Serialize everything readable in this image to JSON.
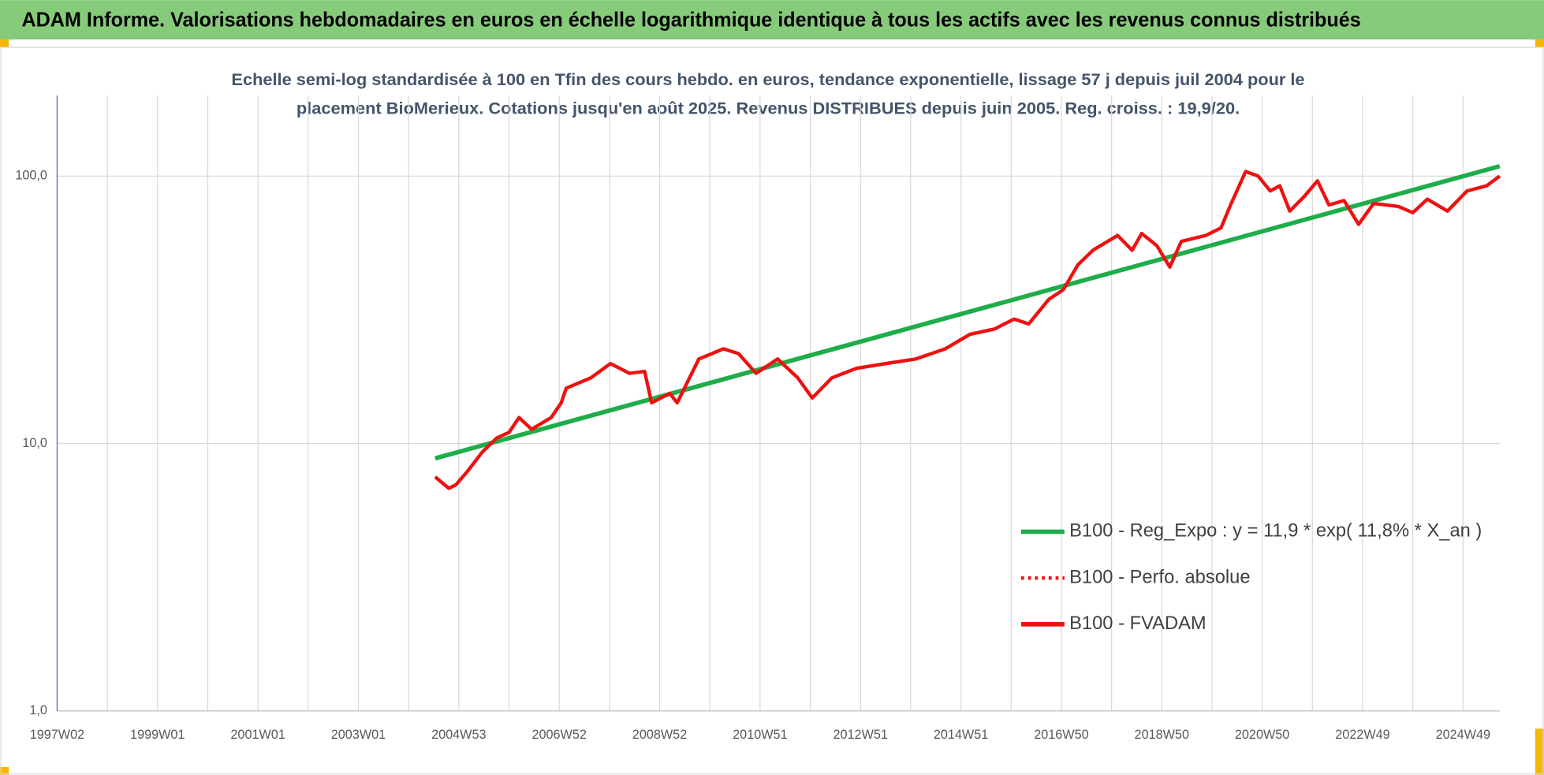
{
  "chart_data": {
    "type": "line",
    "title": "ADAM Informe. Valorisations hebdomadaires en euros en échelle logarithmique identique à tous les actifs avec les revenus connus distribués",
    "subtitle": [
      "Echelle semi-log standardisée à 100 en Tfin des cours hebdo. en euros, tendance exponentielle, lissage 57 j depuis juil 2004 pour le",
      "placement BioMerieux. Cotations jusqu'en août 2025. Revenus DISTRIBUES depuis juin 2005. Reg. croiss. : 19,9/20."
    ],
    "log_y": true,
    "xlim": [
      1997.0,
      2025.73
    ],
    "ylim": [
      1,
      200
    ],
    "yticks": [
      {
        "value": 1,
        "label": "1,0"
      },
      {
        "value": 10,
        "label": "10,0"
      },
      {
        "value": 100,
        "label": "100,0"
      }
    ],
    "xticks": [
      {
        "value": 1997.0,
        "label": "1997W02"
      },
      {
        "value": 1999.0,
        "label": "1999W01"
      },
      {
        "value": 2001.0,
        "label": "2001W01"
      },
      {
        "value": 2003.0,
        "label": "2003W01"
      },
      {
        "value": 2005.0,
        "label": "2004W53"
      },
      {
        "value": 2007.0,
        "label": "2006W52"
      },
      {
        "value": 2009.0,
        "label": "2008W52"
      },
      {
        "value": 2011.0,
        "label": "2010W51"
      },
      {
        "value": 2013.0,
        "label": "2012W51"
      },
      {
        "value": 2015.0,
        "label": "2014W51"
      },
      {
        "value": 2017.0,
        "label": "2016W50"
      },
      {
        "value": 2019.0,
        "label": "2018W50"
      },
      {
        "value": 2021.0,
        "label": "2020W50"
      },
      {
        "value": 2023.0,
        "label": "2022W49"
      },
      {
        "value": 2025.0,
        "label": "2024W49"
      }
    ],
    "xgrid": [
      1998,
      2000,
      2002,
      2004,
      2006,
      2008,
      2010,
      2012,
      2014,
      2016,
      2018,
      2020,
      2022,
      2024
    ],
    "grid": true,
    "legend": "right",
    "series": [
      {
        "name": "B100 - Reg_Expo : y = 11,9 * exp( 11,8% *  X_an )",
        "color": "#1fad4b",
        "style": "solid",
        "x": [
          2004.53,
          2025.73
        ],
        "values": [
          8.8,
          108.9
        ]
      },
      {
        "name": "B100 - Perfo. absolue",
        "color": "#ee1111",
        "style": "dotted",
        "x": [
          2004.53,
          2004.8,
          2004.94,
          2005.18,
          2005.47,
          2005.76,
          2006.0,
          2006.2,
          2006.45,
          2006.84,
          2007.04,
          2007.14,
          2007.63,
          2008.02,
          2008.4,
          2008.7,
          2008.84,
          2009.2,
          2009.35,
          2009.78,
          2010.27,
          2010.57,
          2010.92,
          2011.35,
          2011.75,
          2012.04,
          2012.43,
          2012.92,
          2013.5,
          2014.1,
          2014.69,
          2015.18,
          2015.67,
          2016.06,
          2016.35,
          2016.75,
          2017.04,
          2017.33,
          2017.63,
          2018.12,
          2018.41,
          2018.6,
          2018.9,
          2019.16,
          2019.39,
          2019.88,
          2020.18,
          2020.37,
          2020.67,
          2020.92,
          2021.16,
          2021.35,
          2021.55,
          2021.84,
          2022.1,
          2022.33,
          2022.63,
          2022.92,
          2023.22,
          2023.71,
          2024.0,
          2024.29,
          2024.69,
          2025.08,
          2025.47,
          2025.73
        ],
        "values": [
          7.5,
          6.8,
          7.0,
          7.9,
          9.3,
          10.5,
          11.0,
          12.5,
          11.3,
          12.5,
          14.2,
          16.1,
          17.6,
          19.9,
          18.3,
          18.6,
          14.2,
          15.4,
          14.2,
          20.7,
          22.6,
          21.7,
          18.3,
          20.7,
          17.6,
          14.8,
          17.6,
          19.1,
          19.9,
          20.7,
          22.6,
          25.6,
          26.8,
          29.2,
          28.0,
          34.6,
          37.6,
          46.6,
          52.8,
          60,
          52.8,
          61,
          55,
          45.7,
          57,
          60,
          64,
          78,
          104,
          100,
          88,
          92,
          74,
          84,
          96,
          78,
          81,
          66,
          79,
          77,
          73,
          82,
          74,
          88,
          92,
          100
        ]
      },
      {
        "name": "B100 - FVADAM",
        "color": "#ee1111",
        "style": "solid",
        "x": [
          2004.53,
          2004.8,
          2004.94,
          2005.18,
          2005.47,
          2005.76,
          2006.0,
          2006.2,
          2006.45,
          2006.84,
          2007.04,
          2007.14,
          2007.63,
          2008.02,
          2008.4,
          2008.7,
          2008.84,
          2009.2,
          2009.35,
          2009.78,
          2010.27,
          2010.57,
          2010.92,
          2011.35,
          2011.75,
          2012.04,
          2012.43,
          2012.92,
          2013.5,
          2014.1,
          2014.69,
          2015.18,
          2015.67,
          2016.06,
          2016.35,
          2016.75,
          2017.04,
          2017.33,
          2017.63,
          2018.12,
          2018.41,
          2018.6,
          2018.9,
          2019.16,
          2019.39,
          2019.88,
          2020.18,
          2020.37,
          2020.67,
          2020.92,
          2021.16,
          2021.35,
          2021.55,
          2021.84,
          2022.1,
          2022.33,
          2022.63,
          2022.92,
          2023.22,
          2023.71,
          2024.0,
          2024.29,
          2024.69,
          2025.08,
          2025.47,
          2025.73
        ],
        "values": [
          7.5,
          6.8,
          7.0,
          7.9,
          9.3,
          10.5,
          11.0,
          12.5,
          11.3,
          12.5,
          14.2,
          16.1,
          17.6,
          19.9,
          18.3,
          18.6,
          14.2,
          15.4,
          14.2,
          20.7,
          22.6,
          21.7,
          18.3,
          20.7,
          17.6,
          14.8,
          17.6,
          19.1,
          19.9,
          20.7,
          22.6,
          25.6,
          26.8,
          29.2,
          28.0,
          34.6,
          37.6,
          46.6,
          52.8,
          60,
          52.8,
          61,
          55,
          45.7,
          57,
          60,
          64,
          78,
          104,
          100,
          88,
          92,
          74,
          84,
          96,
          78,
          81,
          66,
          79,
          77,
          73,
          82,
          74,
          88,
          92,
          100
        ]
      }
    ]
  }
}
